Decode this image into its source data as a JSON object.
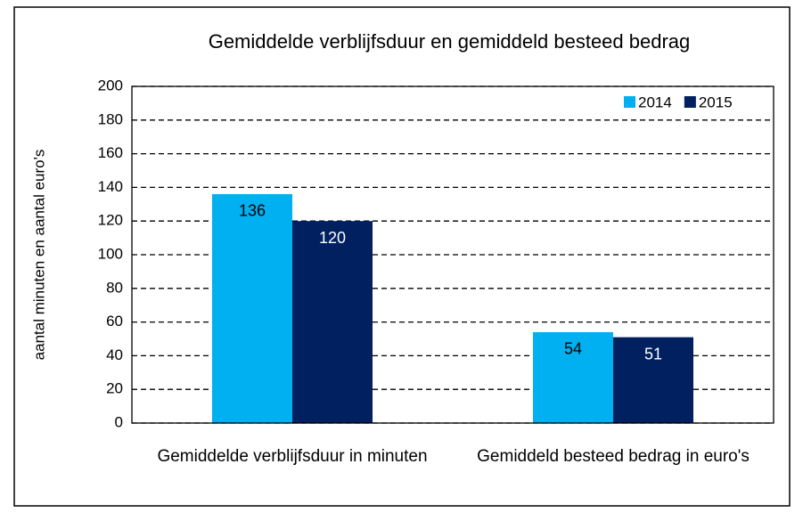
{
  "chart_data": {
    "type": "bar",
    "title": "Gemiddelde verblijfsduur en gemiddeld besteed bedrag",
    "y_label": "aantal minuten en aantal euro's",
    "categories": [
      "Gemiddelde verblijfsduur in minuten",
      "Gemiddeld besteed bedrag in euro's"
    ],
    "series": [
      {
        "name": "2014",
        "color": "#00b0f0",
        "values": [
          136,
          54
        ]
      },
      {
        "name": "2015",
        "color": "#002060",
        "values": [
          120,
          51
        ]
      }
    ],
    "ylim": [
      0,
      200
    ],
    "yticks": [
      0,
      20,
      40,
      60,
      80,
      100,
      120,
      140,
      160,
      180,
      200
    ],
    "grid": true,
    "legend": "top-right"
  }
}
